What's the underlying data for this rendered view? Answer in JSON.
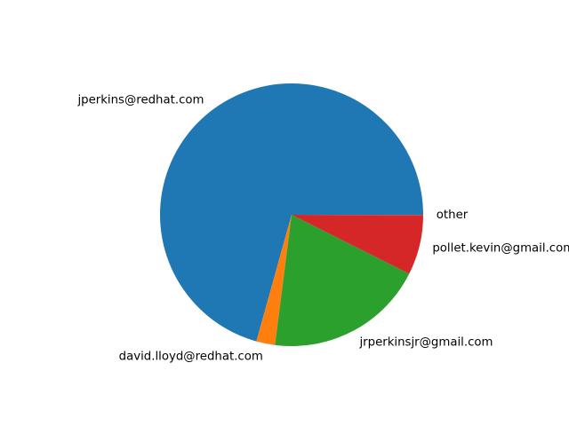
{
  "chart_data": {
    "type": "pie",
    "title": "",
    "start_angle_deg": 0,
    "direction": "counterclockwise",
    "slices": [
      {
        "label": "jperkins@redhat.com",
        "value": 70.7,
        "color": "#1f77b4"
      },
      {
        "label": "david.lloyd@redhat.com",
        "value": 2.3,
        "color": "#ff7f0e"
      },
      {
        "label": "jrperkinsjr@gmail.com",
        "value": 19.6,
        "color": "#2ca02c"
      },
      {
        "label": "pollet.kevin@gmail.com",
        "value": 7.4,
        "color": "#d62728"
      },
      {
        "label": "other",
        "value": 0.02,
        "color": "#9467bd"
      }
    ]
  }
}
